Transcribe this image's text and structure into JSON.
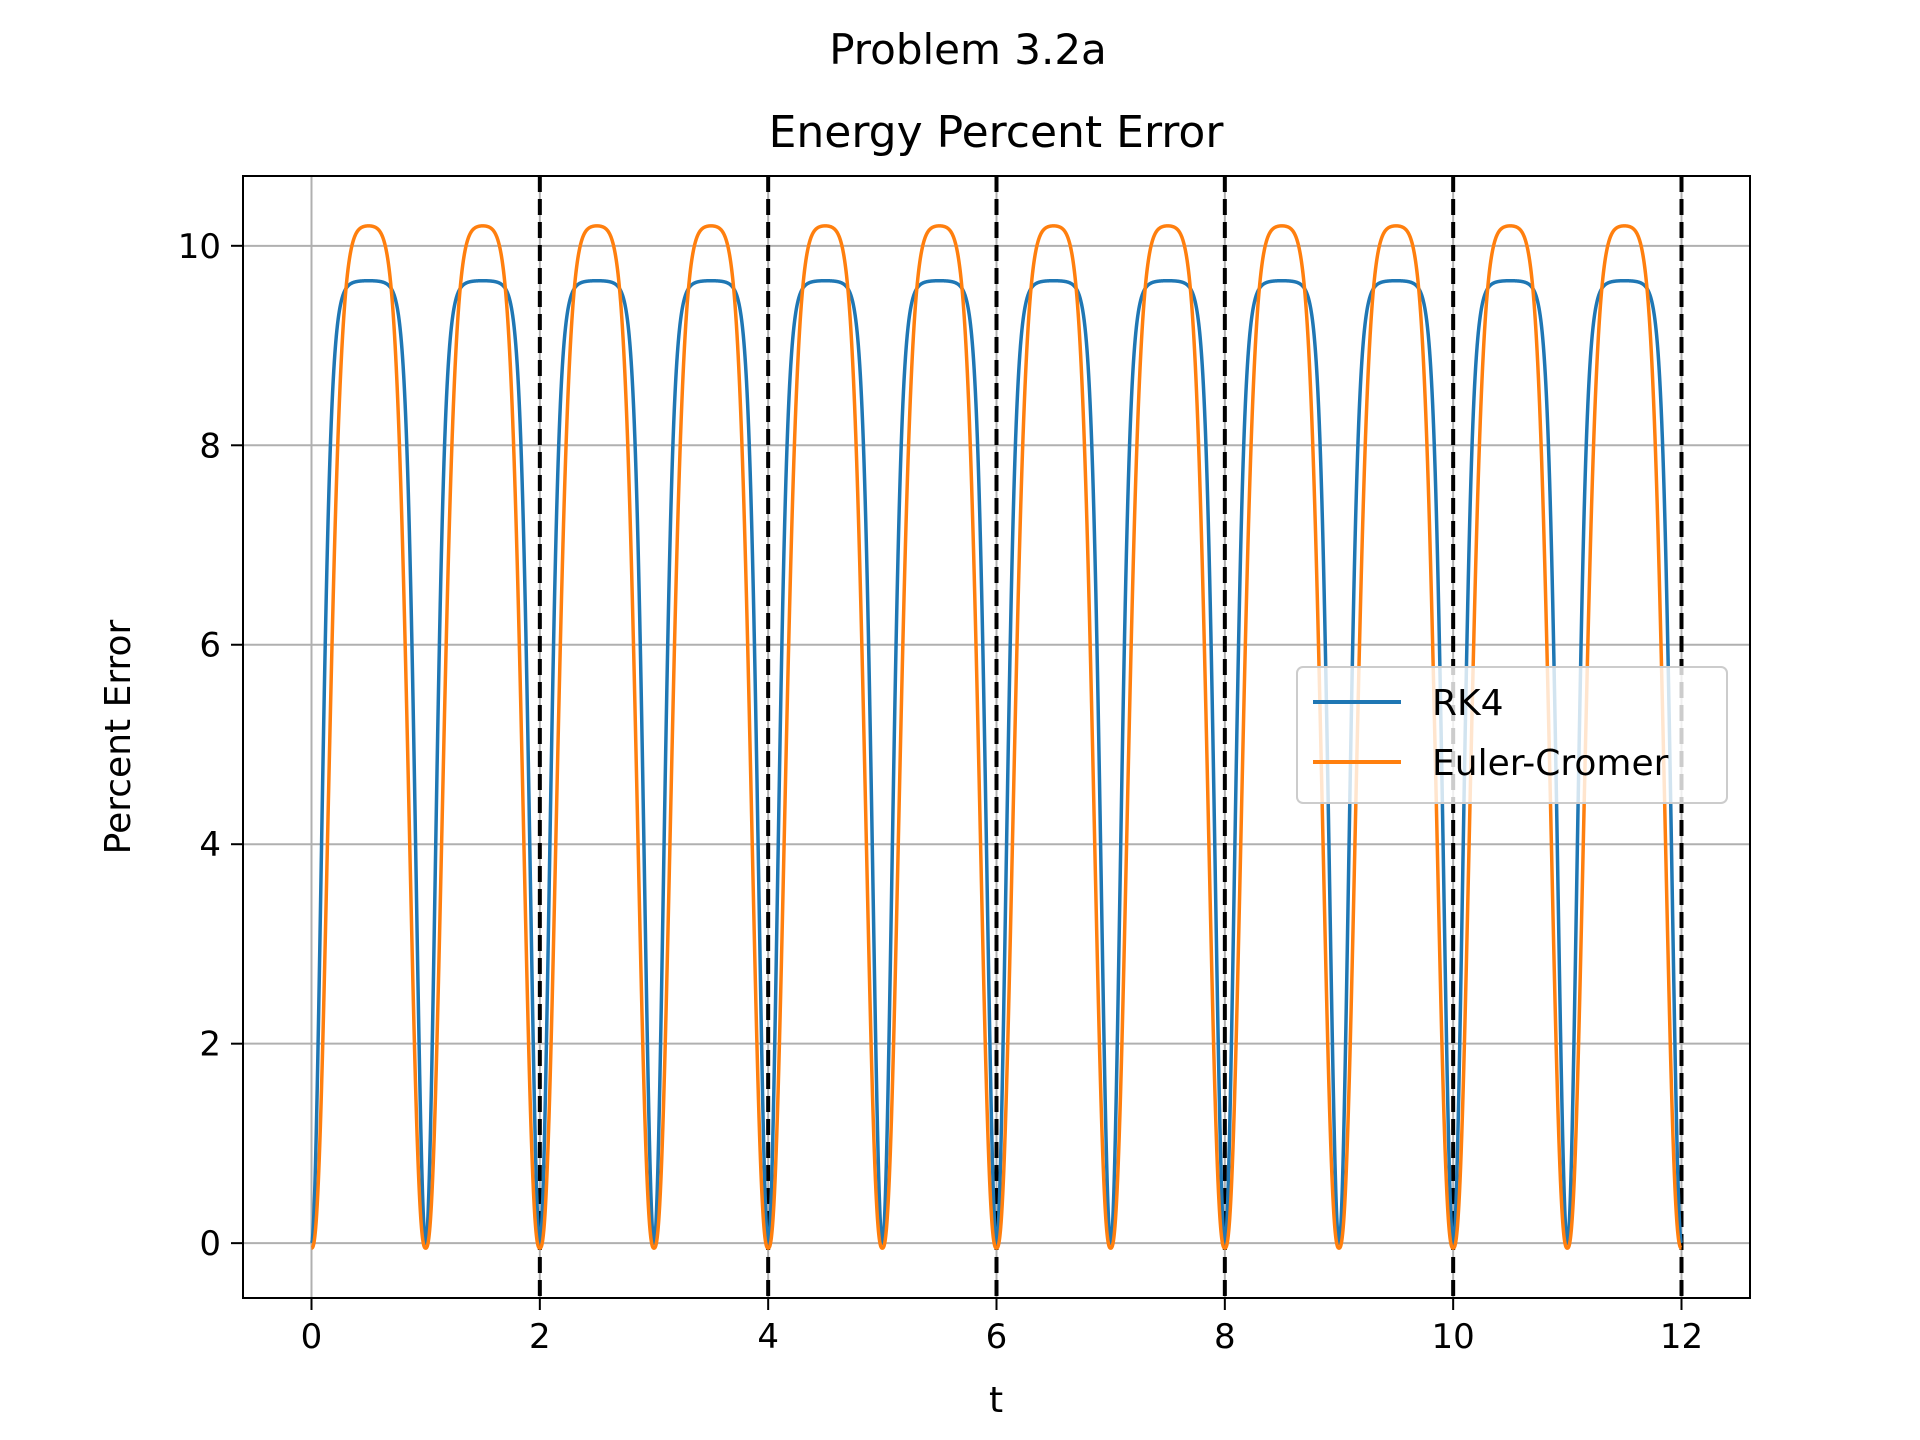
{
  "chart_data": {
    "type": "line",
    "suptitle": "Problem 3.2a",
    "title": "Energy Percent Error",
    "xlabel": "t",
    "ylabel": "Percent Error",
    "xlim": [
      -0.6,
      12.6
    ],
    "ylim": [
      -0.55,
      10.7
    ],
    "xticks": [
      0,
      2,
      4,
      6,
      8,
      10,
      12
    ],
    "yticks": [
      0,
      2,
      4,
      6,
      8,
      10
    ],
    "grid": true,
    "legend_position": "center-right",
    "period_markers_x": [
      2,
      4,
      6,
      8,
      10,
      12
    ],
    "series": [
      {
        "name": "RK4",
        "color": "#1f77b4",
        "peak": 9.65,
        "period": 1.0,
        "zeros_at": [
          0,
          1,
          2,
          3,
          4,
          5,
          6,
          7,
          8,
          9,
          10,
          11,
          12
        ],
        "t_range": [
          0,
          12
        ]
      },
      {
        "name": "Euler-Cromer",
        "color": "#ff7f0e",
        "peak": 10.2,
        "min": -0.05,
        "period": 1.0,
        "peaks_at": [
          0.62,
          1.62,
          2.62,
          3.62,
          4.62,
          5.62,
          6.62,
          7.62,
          8.62,
          9.62,
          10.62,
          11.62
        ],
        "t_range": [
          0,
          12
        ]
      }
    ]
  }
}
